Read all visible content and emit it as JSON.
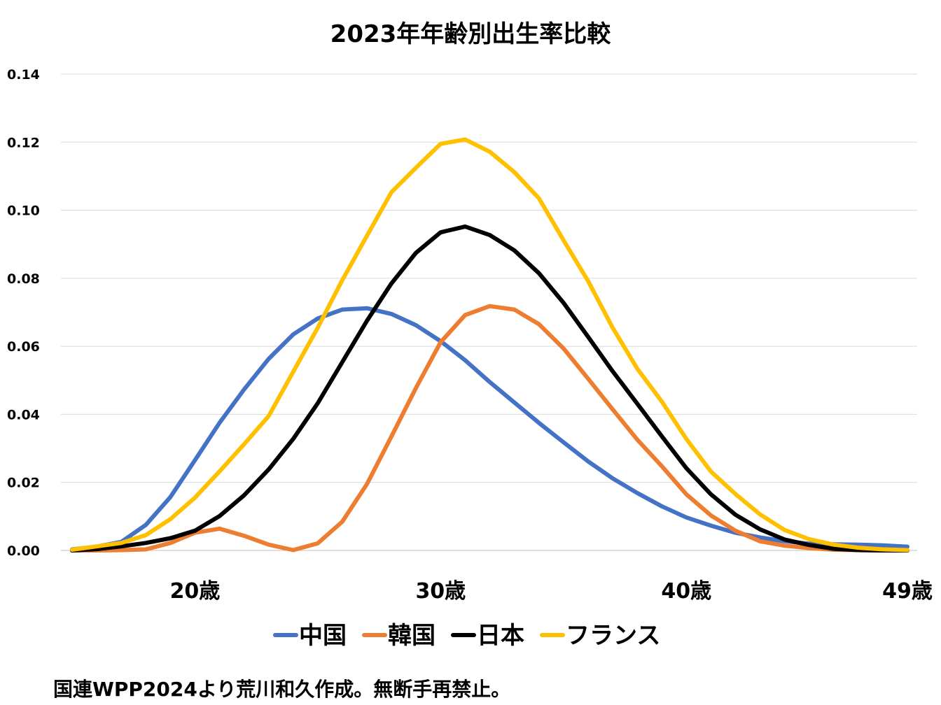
{
  "chart_data": {
    "type": "line",
    "title": "2023年年齢別出生率比較",
    "ylim": [
      0,
      0.14
    ],
    "y_ticks": [
      "0.00",
      "0.02",
      "0.04",
      "0.06",
      "0.08",
      "0.10",
      "0.12",
      "0.14"
    ],
    "x_range": [
      15,
      49
    ],
    "x_ticks": [
      {
        "x": 20,
        "label": "20歳"
      },
      {
        "x": 30,
        "label": "30歳"
      },
      {
        "x": 40,
        "label": "40歳"
      },
      {
        "x": 49,
        "label": "49歳"
      }
    ],
    "grid": "horizontal",
    "legend_placement": "bottom",
    "x": [
      15,
      16,
      17,
      18,
      19,
      20,
      21,
      22,
      23,
      24,
      25,
      26,
      27,
      28,
      29,
      30,
      31,
      32,
      33,
      34,
      35,
      36,
      37,
      38,
      39,
      40,
      41,
      42,
      43,
      44,
      45,
      46,
      47,
      48,
      49
    ],
    "series": [
      {
        "name": "中国",
        "color": "#4472C4",
        "values": [
          0.0003,
          0.0011,
          0.0025,
          0.0075,
          0.0157,
          0.0265,
          0.0375,
          0.0473,
          0.0563,
          0.0635,
          0.0682,
          0.0708,
          0.0712,
          0.0695,
          0.0662,
          0.0615,
          0.0559,
          0.0495,
          0.0435,
          0.0375,
          0.0318,
          0.0262,
          0.0212,
          0.0169,
          0.013,
          0.0097,
          0.0073,
          0.0052,
          0.0038,
          0.0027,
          0.002,
          0.0018,
          0.0017,
          0.0015,
          0.0011
        ]
      },
      {
        "name": "韓国",
        "color": "#ED7D31",
        "values": [
          0.0,
          0.0,
          0.0001,
          0.0003,
          0.0022,
          0.0052,
          0.0064,
          0.0043,
          0.0017,
          0.0001,
          0.0021,
          0.0085,
          0.0195,
          0.0335,
          0.0478,
          0.0612,
          0.0692,
          0.0718,
          0.0708,
          0.0665,
          0.0594,
          0.0505,
          0.0415,
          0.0326,
          0.0248,
          0.0165,
          0.0103,
          0.0058,
          0.0027,
          0.0014,
          0.0007,
          0.0002,
          0.0001,
          0.0,
          0.0
        ]
      },
      {
        "name": "日本",
        "color": "#000000",
        "values": [
          0.0,
          0.0004,
          0.0012,
          0.0022,
          0.0036,
          0.0058,
          0.0101,
          0.0162,
          0.0238,
          0.0328,
          0.0433,
          0.0554,
          0.0675,
          0.0785,
          0.0875,
          0.0935,
          0.0952,
          0.0927,
          0.0882,
          0.0815,
          0.0728,
          0.0628,
          0.0527,
          0.0432,
          0.0336,
          0.0242,
          0.0165,
          0.0105,
          0.0062,
          0.0032,
          0.0016,
          0.0005,
          0.0001,
          0.0,
          0.0
        ]
      },
      {
        "name": "フランス",
        "color": "#FFC000",
        "values": [
          0.0002,
          0.0012,
          0.0022,
          0.0045,
          0.0092,
          0.0155,
          0.0232,
          0.0312,
          0.0395,
          0.0525,
          0.0655,
          0.0795,
          0.0925,
          0.1053,
          0.1125,
          0.1195,
          0.1208,
          0.1172,
          0.1112,
          0.1035,
          0.0912,
          0.0792,
          0.0655,
          0.0535,
          0.0438,
          0.0328,
          0.0232,
          0.0166,
          0.0106,
          0.006,
          0.0033,
          0.0017,
          0.0008,
          0.0003,
          0.0001
        ]
      }
    ]
  },
  "footer": {
    "source": "国連WPP2024より荒川和久作成。無断手再禁止。"
  }
}
